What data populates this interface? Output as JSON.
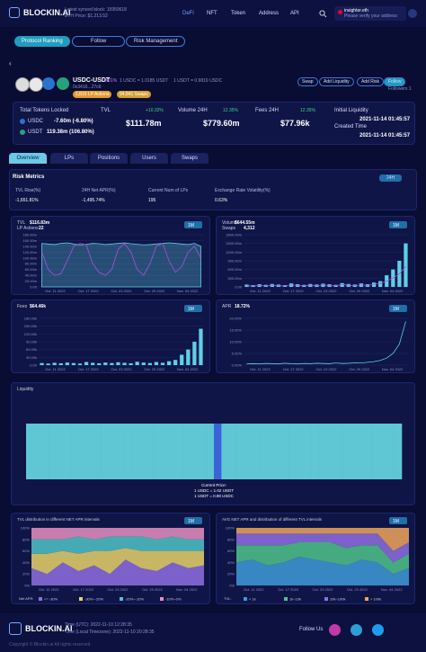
{
  "header": {
    "logo": "BLOCKIN.AI",
    "synced": "Latest synced block: 15959618",
    "eth_price": "ETH Price: $1,213.52",
    "nav": [
      "DeFi",
      "NFT",
      "Token",
      "Address",
      "API"
    ],
    "user": "insighter.eth",
    "verify": "Please verify your address"
  },
  "subnav": [
    "Protocol Ranking",
    "Follow",
    "Risk Management"
  ],
  "pool": {
    "name": "USDC-USDT",
    "fee": "0.01%",
    "address": "0x3416...27c6",
    "rate1": "1 USDC = 1.0185 USDT",
    "rate2": "1 USDT = 0.9819 USDC",
    "lp_actions": "1,815 LP Actions",
    "swaps": "94,841 Swaps",
    "buttons": [
      "Swap",
      "Add Liquidity",
      "Add Risk",
      "Follow"
    ],
    "followers": "Followers 1"
  },
  "stats": {
    "locked_title": "Total Tokens Locked",
    "tokens": [
      {
        "symbol": "USDC",
        "value": "-7.60m (-6.80%)"
      },
      {
        "symbol": "USDT",
        "value": "119.38m (106.80%)"
      }
    ],
    "cards": [
      {
        "label": "TVL",
        "change": "+10.32%",
        "value": "$111.78m"
      },
      {
        "label": "Volume 24H",
        "change": "12.35%",
        "value": "$779.60m"
      },
      {
        "label": "Fees 24H",
        "change": "12.35%",
        "value": "$77.96k"
      }
    ],
    "initial_label": "Initial Liquidity",
    "initial": "2021-11-14 01:45:57",
    "created_label": "Created Time",
    "created": "2021-11-14 01:45:57"
  },
  "tabs": [
    "Overview",
    "LPs",
    "Positions",
    "Users",
    "Swaps"
  ],
  "risk": {
    "title": "Risk Metrics",
    "period": "24H",
    "metrics": [
      {
        "label": "TVL Rise(%)",
        "value": "-1,651.81%"
      },
      {
        "label": "24H Net APR(%)",
        "value": "-1,495.74%"
      },
      {
        "label": "Current Num of LPs",
        "value": "195"
      },
      {
        "label": "Exchange Rate Volatility(%)",
        "value": "0.63%"
      }
    ]
  },
  "charts": [
    {
      "label": "TVL",
      "value": "$116.83m",
      "sub_label": "LP Actions",
      "sub_value": "22",
      "period": "1M",
      "ylim": [
        0,
        180
      ],
      "yticks": [
        {
          "value": 0,
          "label": "0.00"
        },
        {
          "value": 20,
          "label": "20.00m"
        },
        {
          "value": 40,
          "label": "40.00m"
        },
        {
          "value": 60,
          "label": "60.00m"
        },
        {
          "value": 80,
          "label": "80.00m"
        },
        {
          "value": 100,
          "label": "100.00m"
        },
        {
          "value": 120,
          "label": "120.00m"
        },
        {
          "value": 140,
          "label": "140.00m"
        },
        {
          "value": 160,
          "label": "160.00m"
        },
        {
          "value": 180,
          "label": "180.00m"
        }
      ],
      "xlabels": [
        "Oct. 11 2022",
        "Oct. 17 2022",
        "Oct. 23 2022",
        "Oct. 29 2022",
        "Nov. 04 2022"
      ],
      "series": [
        {
          "type": "area",
          "color": "#5fd0e6",
          "values": [
            150,
            148,
            146,
            150,
            152,
            148,
            145,
            147,
            150,
            149,
            146,
            148,
            150,
            152,
            149,
            147,
            145,
            146,
            148,
            150,
            152,
            150,
            148,
            146,
            150,
            140
          ]
        },
        {
          "type": "line",
          "color": "#b04ee0",
          "values": [
            120,
            60,
            40,
            45,
            90,
            140,
            150,
            145,
            80,
            50,
            40,
            60,
            130,
            150,
            120,
            60,
            40,
            80,
            140,
            150,
            90,
            50,
            70,
            120,
            140,
            100
          ]
        }
      ]
    },
    {
      "label": "Volume",
      "value": "$644.55m",
      "sub_label": "Swaps",
      "sub_value": "4,312",
      "period": "1M",
      "ylim": [
        0,
        1800
      ],
      "yticks": [
        {
          "value": 0,
          "label": "0.00"
        },
        {
          "value": 300,
          "label": "300.00m"
        },
        {
          "value": 600,
          "label": "600.00m"
        },
        {
          "value": 900,
          "label": "900.00m"
        },
        {
          "value": 1200,
          "label": "1200.00m"
        },
        {
          "value": 1500,
          "label": "1500.00m"
        },
        {
          "value": 1800,
          "label": "1800.00m"
        }
      ],
      "xlabels": [
        "Oct. 11 2022",
        "Oct. 17 2022",
        "Oct. 23 2022",
        "Oct. 29 2022",
        "Nov. 04 2022"
      ],
      "series": [
        {
          "type": "bar",
          "color": "#5fd0e6",
          "values": [
            80,
            60,
            90,
            70,
            100,
            80,
            60,
            120,
            90,
            70,
            100,
            80,
            110,
            90,
            70,
            130,
            100,
            80,
            120,
            90,
            150,
            200,
            400,
            600,
            900,
            1500
          ]
        },
        {
          "type": "line",
          "color": "#b04ee0",
          "values": [
            40,
            30,
            50,
            35,
            60,
            40,
            30,
            70,
            50,
            35,
            60,
            40,
            65,
            50,
            35,
            80,
            60,
            40,
            70,
            50,
            90,
            120,
            200,
            300,
            450,
            700
          ]
        }
      ]
    },
    {
      "label": "Fees",
      "value": "$64.46k",
      "period": "1M",
      "ylim": [
        0,
        180
      ],
      "yticks": [
        {
          "value": 0,
          "label": "0.00"
        },
        {
          "value": 30,
          "label": "30.00k"
        },
        {
          "value": 60,
          "label": "60.00k"
        },
        {
          "value": 90,
          "label": "90.00k"
        },
        {
          "value": 120,
          "label": "120.00k"
        },
        {
          "value": 150,
          "label": "150.00k"
        },
        {
          "value": 180,
          "label": "180.00k"
        }
      ],
      "xlabels": [
        "Oct. 11 2022",
        "Oct. 17 2022",
        "Oct. 23 2022",
        "Oct. 29 2022",
        "Nov. 04 2022"
      ],
      "series": [
        {
          "type": "bar",
          "color": "#5fd0e6",
          "values": [
            8,
            6,
            9,
            7,
            10,
            8,
            6,
            12,
            9,
            7,
            10,
            8,
            11,
            9,
            7,
            13,
            10,
            8,
            12,
            9,
            15,
            20,
            40,
            60,
            90,
            140
          ]
        }
      ]
    },
    {
      "label": "APR",
      "value": "18.72%",
      "period": "1M",
      "ylim": [
        0,
        20
      ],
      "yticks": [
        {
          "value": 0,
          "label": "0.00%"
        },
        {
          "value": 5,
          "label": "5.00%"
        },
        {
          "value": 10,
          "label": "10.00%"
        },
        {
          "value": 15,
          "label": "15.00%"
        },
        {
          "value": 20,
          "label": "20.00%"
        }
      ],
      "xlabels": [
        "Oct. 11 2022",
        "Oct. 17 2022",
        "Oct. 23 2022",
        "Oct. 29 2022",
        "Nov. 04 2022"
      ],
      "series": [
        {
          "type": "line",
          "color": "#5fd0e6",
          "values": [
            0.5,
            0.6,
            0.5,
            0.7,
            0.6,
            0.5,
            0.8,
            0.6,
            0.5,
            0.7,
            0.6,
            0.8,
            0.7,
            0.6,
            0.9,
            0.7,
            0.8,
            1,
            0.9,
            1.2,
            1.5,
            2,
            3,
            5,
            9,
            18.72
          ]
        }
      ]
    }
  ],
  "liquidity": {
    "title": "Liquidity",
    "current": "Current Price:",
    "rate1": "1 USDC = 1.02 USDT",
    "rate2": "1 USDT = 0.98 USDC",
    "color": "#5fc6d4",
    "current_color": "#3a63d8",
    "values": [
      100,
      100,
      100,
      100,
      100,
      100,
      100,
      100,
      100,
      100,
      100,
      100,
      100,
      100,
      100,
      100,
      100,
      100,
      100,
      100,
      100,
      100,
      100,
      100,
      100,
      100,
      100,
      100,
      100,
      100,
      100,
      100,
      100,
      100,
      100,
      100,
      100,
      100,
      100,
      100,
      100,
      100,
      100,
      100,
      100,
      100,
      100,
      100,
      100,
      100
    ]
  },
  "dist": [
    {
      "title": "TVL distribution in different NET APR intervals",
      "period": "1M",
      "legend_title": "Net APR:",
      "ylim": [
        0,
        100
      ],
      "yticks": [
        {
          "value": 0,
          "label": "0%"
        },
        {
          "value": 20,
          "label": "20%"
        },
        {
          "value": 40,
          "label": "40%"
        },
        {
          "value": 60,
          "label": "60%"
        },
        {
          "value": 80,
          "label": "80%"
        },
        {
          "value": 100,
          "label": "100%"
        }
      ],
      "xlabels": [
        "Oct. 11 2022",
        "Oct. 17 2022",
        "Oct. 23 2022",
        "Oct. 29 2022",
        "Nov. 04 2022"
      ],
      "series": [
        {
          "name": "<= -30%",
          "color": "#8e6fe0",
          "values": [
            30,
            20,
            40,
            25,
            35,
            20,
            45,
            30,
            25,
            40,
            30,
            35
          ]
        },
        {
          "name": "-30%~-20%",
          "color": "#e7d36a",
          "values": [
            25,
            35,
            20,
            30,
            25,
            40,
            20,
            30,
            35,
            20,
            30,
            25
          ]
        },
        {
          "name": "-20%~-10%",
          "color": "#4fc4c8",
          "values": [
            25,
            25,
            20,
            30,
            20,
            25,
            20,
            25,
            20,
            25,
            20,
            20
          ]
        },
        {
          "name": "-10%~0%",
          "color": "#e78fc0",
          "values": [
            20,
            20,
            20,
            15,
            20,
            15,
            15,
            15,
            20,
            15,
            20,
            20
          ]
        }
      ]
    },
    {
      "title": "AVG NET APR and distribution of different TVL intervals",
      "period": "1M",
      "legend_title": "TVL:",
      "ylim": [
        0,
        100
      ],
      "yticks": [
        {
          "value": 0,
          "label": "0%"
        },
        {
          "value": 20,
          "label": "20%"
        },
        {
          "value": 40,
          "label": "40%"
        },
        {
          "value": 60,
          "label": "60%"
        },
        {
          "value": 80,
          "label": "80%"
        },
        {
          "value": 100,
          "label": "100%"
        }
      ],
      "xlabels": [
        "Oct. 11 2022",
        "Oct. 17 2022",
        "Oct. 23 2022",
        "Oct. 29 2022",
        "Nov. 04 2022"
      ],
      "series": [
        {
          "name": "< 1k",
          "color": "#3f9ad8",
          "values": [
            40,
            45,
            35,
            40,
            50,
            45,
            40,
            35,
            45,
            40,
            20,
            30
          ]
        },
        {
          "name": "1k~10k",
          "color": "#4fc48a",
          "values": [
            30,
            25,
            35,
            30,
            25,
            30,
            35,
            30,
            25,
            30,
            20,
            25
          ]
        },
        {
          "name": "10k~100k",
          "color": "#8e6fe0",
          "values": [
            20,
            20,
            20,
            20,
            15,
            15,
            15,
            25,
            20,
            20,
            20,
            20
          ]
        },
        {
          "name": "> 100k",
          "color": "#f0a65a",
          "values": [
            10,
            10,
            10,
            10,
            10,
            10,
            10,
            10,
            10,
            10,
            40,
            25
          ]
        }
      ]
    }
  ],
  "footer": {
    "logo": "BLOCKIN.AI",
    "utc": "Time (UTC): 2022-11-10 12:28:35",
    "local": "Time (Local Timezone): 2022-11-10 20:28:35",
    "follow": "Follow Us",
    "copyright": "Copyright © Blockin.ai All rights reserved"
  }
}
